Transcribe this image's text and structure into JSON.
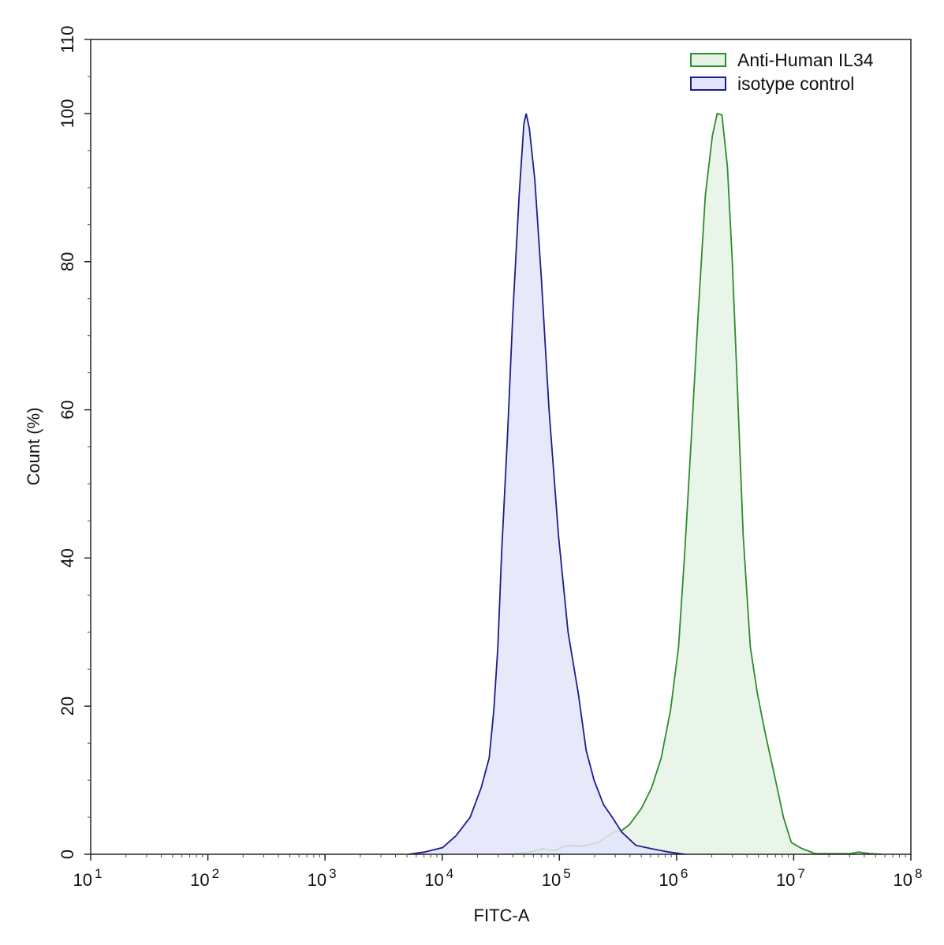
{
  "chart_data": {
    "type": "area",
    "title": "",
    "xlabel": "FITC-A",
    "ylabel": "Count  (%)",
    "xscale": "log",
    "xlim": [
      10,
      100000000
    ],
    "ylim": [
      0,
      110
    ],
    "xticks": [
      {
        "base": "10",
        "exp": "1",
        "value": 10
      },
      {
        "base": "10",
        "exp": "2",
        "value": 100
      },
      {
        "base": "10",
        "exp": "3",
        "value": 1000
      },
      {
        "base": "10",
        "exp": "4",
        "value": 10000
      },
      {
        "base": "10",
        "exp": "5",
        "value": 100000
      },
      {
        "base": "10",
        "exp": "6",
        "value": 1000000
      },
      {
        "base": "10",
        "exp": "7",
        "value": 10000000
      },
      {
        "base": "10",
        "exp": "8",
        "value": 100000000
      }
    ],
    "yticks": [
      "0",
      "20",
      "40",
      "60",
      "80",
      "100",
      "110"
    ],
    "grid": false,
    "legend_position": "top-right",
    "series": [
      {
        "name": "Anti-Human IL34",
        "stroke": "#2e8b2e",
        "fill": "#e4f3e4",
        "x": [
          33270,
          52970,
          72270,
          91200,
          115100,
          156800,
          213600,
          291500,
          340400,
          396700,
          501000,
          613300,
          739300,
          889600,
          1040000,
          1178000,
          1334000,
          1529000,
          1762000,
          2023000,
          2222000,
          2439000,
          2718000,
          2985000,
          3327000,
          3707000,
          4265000,
          4897000,
          5725000,
          6998000,
          8167000,
          9544000,
          11670000,
          15200000,
          30550000,
          35650000,
          44980000,
          56750000
        ],
        "y": [
          0,
          0.2,
          0.75,
          0.5,
          1.2,
          1.1,
          1.6,
          3,
          3.2,
          4,
          6.2,
          9,
          13,
          19.5,
          28,
          41,
          56,
          73,
          89,
          97,
          100,
          99.8,
          92.8,
          80.4,
          62,
          43,
          28,
          21.7,
          16.3,
          10,
          5,
          1.6,
          0.8,
          0.1,
          0.1,
          0.3,
          0.1,
          0
        ]
      },
      {
        "name": "isotype control",
        "stroke": "#1c1c8c",
        "fill": "#e3e5fa",
        "x": [
          5176,
          7047,
          10070,
          13120,
          17340,
          21530,
          25180,
          27610,
          29850,
          32210,
          35970,
          40090,
          45390,
          49770,
          52120,
          55460,
          61800,
          69980,
          81660,
          98400,
          118600,
          145200,
          169400,
          197700,
          238200,
          282500,
          340400,
          449800,
          632400,
          863000,
          1178000
        ],
        "y": [
          0,
          0.3,
          0.9,
          2.5,
          5,
          9,
          13,
          19.5,
          28,
          41,
          56,
          73,
          89,
          98.6,
          100,
          98,
          91,
          78,
          60,
          43,
          30,
          21.7,
          14,
          10,
          6.7,
          5,
          3,
          1.2,
          0.7,
          0.3,
          0
        ]
      }
    ]
  }
}
